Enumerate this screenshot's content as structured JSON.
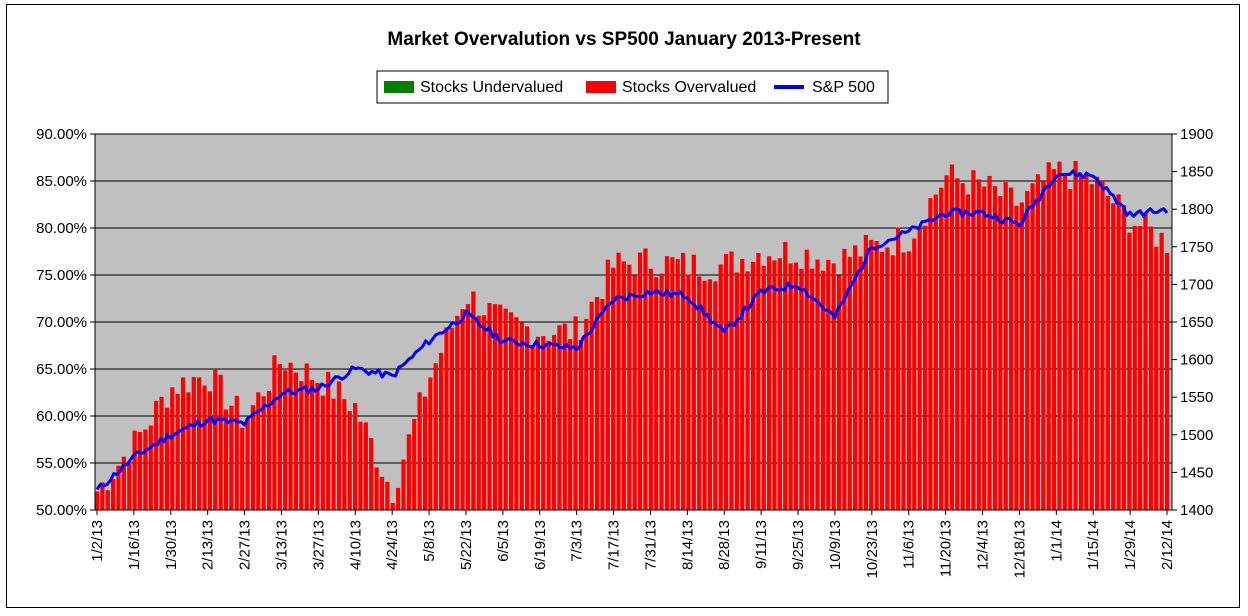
{
  "chart_data": {
    "type": "bar",
    "title": "Market Overvalution vs SP500 January 2013-Present",
    "legend": {
      "placement": "top-center",
      "entries": [
        {
          "label": "Stocks Undervalued",
          "color": "#008000",
          "kind": "box"
        },
        {
          "label": "Stocks Overvalued",
          "color": "#ff0000",
          "kind": "box"
        },
        {
          "label": "S&P 500",
          "color": "#0000ff",
          "kind": "line"
        }
      ]
    },
    "plot_background": "#c0c0c0",
    "grid": true,
    "y_left": {
      "min": 0.5,
      "max": 0.9,
      "step": 0.05,
      "tick_labels": [
        "50.00%",
        "55.00%",
        "60.00%",
        "65.00%",
        "70.00%",
        "75.00%",
        "80.00%",
        "85.00%",
        "90.00%"
      ]
    },
    "y_right": {
      "min": 1400,
      "max": 1900,
      "step": 50,
      "tick_labels": [
        "1400",
        "1450",
        "1500",
        "1550",
        "1600",
        "1650",
        "1700",
        "1750",
        "1800",
        "1850",
        "1900"
      ]
    },
    "x_tick_labels": [
      "1/2/13",
      "1/16/13",
      "1/30/13",
      "2/13/13",
      "2/27/13",
      "3/13/13",
      "3/27/13",
      "4/10/13",
      "4/24/13",
      "5/8/13",
      "5/22/13",
      "6/5/13",
      "6/19/13",
      "7/3/13",
      "7/17/13",
      "7/31/13",
      "8/14/13",
      "8/28/13",
      "9/11/13",
      "9/25/13",
      "10/9/13",
      "10/23/13",
      "11/6/13",
      "11/20/13",
      "12/4/13",
      "12/18/13",
      "1/1/14",
      "1/15/14",
      "1/29/14",
      "2/12/14"
    ],
    "series": [
      {
        "name": "Stocks Overvalued",
        "type": "bar",
        "color": "#ff0000",
        "axis": "left",
        "anchors": [
          [
            "1/2/13",
            0.52
          ],
          [
            "1/16/13",
            0.57
          ],
          [
            "1/30/13",
            0.63
          ],
          [
            "2/13/13",
            0.645
          ],
          [
            "2/27/13",
            0.595
          ],
          [
            "3/13/13",
            0.66
          ],
          [
            "3/27/13",
            0.64
          ],
          [
            "4/10/13",
            0.61
          ],
          [
            "4/24/13",
            0.52
          ],
          [
            "5/8/13",
            0.64
          ],
          [
            "5/22/13",
            0.73
          ],
          [
            "6/5/13",
            0.7
          ],
          [
            "6/19/13",
            0.69
          ],
          [
            "7/3/13",
            0.69
          ],
          [
            "7/17/13",
            0.76
          ],
          [
            "7/31/13",
            0.765
          ],
          [
            "8/14/13",
            0.76
          ],
          [
            "8/28/13",
            0.76
          ],
          [
            "9/11/13",
            0.775
          ],
          [
            "9/25/13",
            0.775
          ],
          [
            "10/9/13",
            0.765
          ],
          [
            "10/23/13",
            0.78
          ],
          [
            "11/6/13",
            0.79
          ],
          [
            "11/20/13",
            0.855
          ],
          [
            "12/4/13",
            0.845
          ],
          [
            "12/18/13",
            0.825
          ],
          [
            "1/1/14",
            0.86
          ],
          [
            "1/15/14",
            0.85
          ],
          [
            "1/29/14",
            0.81
          ],
          [
            "2/12/14",
            0.785
          ]
        ]
      },
      {
        "name": "S&P 500",
        "type": "line",
        "color": "#0000ff",
        "axis": "right",
        "anchors": [
          [
            "1/2/13",
            1426
          ],
          [
            "1/16/13",
            1470
          ],
          [
            "1/30/13",
            1500
          ],
          [
            "2/13/13",
            1520
          ],
          [
            "2/27/13",
            1515
          ],
          [
            "3/13/13",
            1555
          ],
          [
            "3/27/13",
            1562
          ],
          [
            "4/10/13",
            1588
          ],
          [
            "4/24/13",
            1578
          ],
          [
            "5/8/13",
            1625
          ],
          [
            "5/22/13",
            1660
          ],
          [
            "6/5/13",
            1625
          ],
          [
            "6/19/13",
            1620
          ],
          [
            "7/3/13",
            1615
          ],
          [
            "7/17/13",
            1680
          ],
          [
            "7/31/13",
            1690
          ],
          [
            "8/14/13",
            1685
          ],
          [
            "8/28/13",
            1635
          ],
          [
            "9/11/13",
            1690
          ],
          [
            "9/25/13",
            1700
          ],
          [
            "10/9/13",
            1656
          ],
          [
            "10/23/13",
            1750
          ],
          [
            "11/6/13",
            1770
          ],
          [
            "11/20/13",
            1795
          ],
          [
            "12/4/13",
            1795
          ],
          [
            "12/18/13",
            1780
          ],
          [
            "1/1/14",
            1848
          ],
          [
            "1/15/14",
            1845
          ],
          [
            "1/29/14",
            1792
          ],
          [
            "2/12/14",
            1800
          ]
        ]
      }
    ]
  }
}
